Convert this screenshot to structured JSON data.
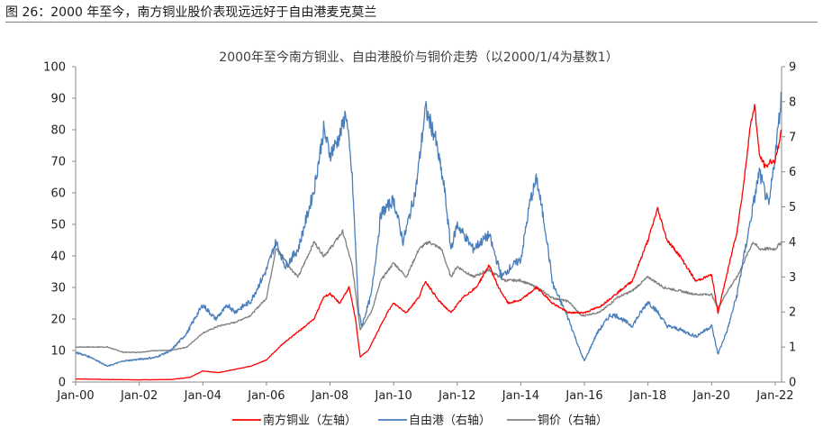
{
  "figure_caption": "图 26：2000 年至今，南方铜业股价表现远远好于自由港麦克莫兰",
  "chart_data": {
    "type": "line",
    "title": "2000年至今南方铜业、自由港股价与铜价走势（以2000/1/4为基数1）",
    "x_tick_labels": [
      "Jan-00",
      "Jan-02",
      "Jan-04",
      "Jan-06",
      "Jan-08",
      "Jan-10",
      "Jan-12",
      "Jan-14",
      "Jan-16",
      "Jan-18",
      "Jan-20",
      "Jan-22"
    ],
    "x_range": [
      2000.0,
      2022.2
    ],
    "y_left": {
      "ylim": [
        0,
        100
      ],
      "ticks": [
        0,
        10,
        20,
        30,
        40,
        50,
        60,
        70,
        80,
        90,
        100
      ]
    },
    "y_right": {
      "ylim": [
        0,
        9
      ],
      "ticks": [
        0,
        1,
        2,
        3,
        4,
        5,
        6,
        7,
        8,
        9
      ]
    },
    "series": [
      {
        "name": "南方铜业（左轴）",
        "axis": "left",
        "color": "#ff0000",
        "points": [
          [
            2000.0,
            1.0
          ],
          [
            2001.0,
            0.8
          ],
          [
            2002.0,
            0.7
          ],
          [
            2003.0,
            0.8
          ],
          [
            2003.6,
            1.5
          ],
          [
            2004.0,
            3.5
          ],
          [
            2004.5,
            3.0
          ],
          [
            2005.0,
            4.0
          ],
          [
            2005.5,
            5.0
          ],
          [
            2006.0,
            7.0
          ],
          [
            2006.5,
            12.0
          ],
          [
            2007.0,
            16.0
          ],
          [
            2007.5,
            20.0
          ],
          [
            2007.8,
            27.0
          ],
          [
            2008.0,
            28.0
          ],
          [
            2008.3,
            25.0
          ],
          [
            2008.6,
            30.0
          ],
          [
            2008.8,
            20.0
          ],
          [
            2008.95,
            8.0
          ],
          [
            2009.2,
            10.0
          ],
          [
            2009.5,
            16.0
          ],
          [
            2009.8,
            22.0
          ],
          [
            2010.0,
            25.0
          ],
          [
            2010.4,
            22.0
          ],
          [
            2010.8,
            27.0
          ],
          [
            2011.0,
            32.0
          ],
          [
            2011.4,
            26.0
          ],
          [
            2011.8,
            22.0
          ],
          [
            2012.2,
            27.0
          ],
          [
            2012.6,
            30.0
          ],
          [
            2013.0,
            37.0
          ],
          [
            2013.3,
            30.0
          ],
          [
            2013.6,
            25.0
          ],
          [
            2014.0,
            26.0
          ],
          [
            2014.5,
            30.0
          ],
          [
            2015.0,
            25.0
          ],
          [
            2015.5,
            22.0
          ],
          [
            2016.0,
            22.0
          ],
          [
            2016.5,
            24.0
          ],
          [
            2017.0,
            28.0
          ],
          [
            2017.5,
            32.0
          ],
          [
            2018.0,
            45.0
          ],
          [
            2018.3,
            55.0
          ],
          [
            2018.6,
            45.0
          ],
          [
            2019.0,
            40.0
          ],
          [
            2019.5,
            32.0
          ],
          [
            2020.0,
            34.0
          ],
          [
            2020.2,
            22.0
          ],
          [
            2020.5,
            35.0
          ],
          [
            2020.8,
            48.0
          ],
          [
            2021.0,
            62.0
          ],
          [
            2021.2,
            80.0
          ],
          [
            2021.35,
            88.0
          ],
          [
            2021.5,
            72.0
          ],
          [
            2021.7,
            68.0
          ],
          [
            2021.85,
            70.0
          ],
          [
            2022.0,
            70.0
          ],
          [
            2022.2,
            80.0
          ]
        ]
      },
      {
        "name": "自由港（右轴）",
        "axis": "right",
        "color": "#4a7ebb",
        "points": [
          [
            2000.0,
            0.85
          ],
          [
            2000.5,
            0.7
          ],
          [
            2001.0,
            0.45
          ],
          [
            2001.5,
            0.6
          ],
          [
            2002.0,
            0.65
          ],
          [
            2002.5,
            0.7
          ],
          [
            2003.0,
            0.9
          ],
          [
            2003.5,
            1.4
          ],
          [
            2003.8,
            1.9
          ],
          [
            2004.0,
            2.2
          ],
          [
            2004.4,
            1.8
          ],
          [
            2004.8,
            2.2
          ],
          [
            2005.0,
            2.0
          ],
          [
            2005.5,
            2.3
          ],
          [
            2006.0,
            3.2
          ],
          [
            2006.3,
            4.0
          ],
          [
            2006.6,
            3.3
          ],
          [
            2007.0,
            3.8
          ],
          [
            2007.5,
            5.5
          ],
          [
            2007.8,
            7.2
          ],
          [
            2008.0,
            6.5
          ],
          [
            2008.3,
            7.0
          ],
          [
            2008.5,
            7.7
          ],
          [
            2008.7,
            5.8
          ],
          [
            2008.9,
            2.0
          ],
          [
            2009.0,
            1.6
          ],
          [
            2009.3,
            2.5
          ],
          [
            2009.6,
            4.8
          ],
          [
            2010.0,
            5.2
          ],
          [
            2010.3,
            4.0
          ],
          [
            2010.7,
            5.5
          ],
          [
            2011.0,
            7.8
          ],
          [
            2011.3,
            7.0
          ],
          [
            2011.6,
            5.5
          ],
          [
            2011.8,
            3.8
          ],
          [
            2012.0,
            4.5
          ],
          [
            2012.5,
            3.8
          ],
          [
            2013.0,
            4.2
          ],
          [
            2013.4,
            3.0
          ],
          [
            2013.7,
            3.3
          ],
          [
            2014.0,
            3.5
          ],
          [
            2014.3,
            5.2
          ],
          [
            2014.5,
            5.8
          ],
          [
            2014.8,
            4.2
          ],
          [
            2015.0,
            2.8
          ],
          [
            2015.5,
            1.8
          ],
          [
            2015.9,
            0.8
          ],
          [
            2016.0,
            0.6
          ],
          [
            2016.4,
            1.4
          ],
          [
            2016.8,
            1.9
          ],
          [
            2017.0,
            1.9
          ],
          [
            2017.5,
            1.6
          ],
          [
            2018.0,
            2.3
          ],
          [
            2018.3,
            2.0
          ],
          [
            2018.6,
            1.6
          ],
          [
            2019.0,
            1.5
          ],
          [
            2019.5,
            1.3
          ],
          [
            2020.0,
            1.6
          ],
          [
            2020.2,
            0.8
          ],
          [
            2020.5,
            1.5
          ],
          [
            2020.8,
            2.5
          ],
          [
            2021.0,
            3.5
          ],
          [
            2021.3,
            5.0
          ],
          [
            2021.5,
            6.0
          ],
          [
            2021.8,
            5.0
          ],
          [
            2022.0,
            6.5
          ],
          [
            2022.2,
            8.2
          ]
        ]
      },
      {
        "name": "铜价（右轴）",
        "axis": "right",
        "color": "#808080",
        "points": [
          [
            2000.0,
            1.0
          ],
          [
            2000.5,
            1.0
          ],
          [
            2001.0,
            1.0
          ],
          [
            2001.5,
            0.85
          ],
          [
            2002.0,
            0.85
          ],
          [
            2002.5,
            0.9
          ],
          [
            2003.0,
            0.9
          ],
          [
            2003.5,
            1.0
          ],
          [
            2004.0,
            1.4
          ],
          [
            2004.5,
            1.6
          ],
          [
            2005.0,
            1.7
          ],
          [
            2005.5,
            1.9
          ],
          [
            2006.0,
            2.4
          ],
          [
            2006.3,
            3.8
          ],
          [
            2006.5,
            3.6
          ],
          [
            2006.8,
            3.2
          ],
          [
            2007.0,
            3.0
          ],
          [
            2007.5,
            4.0
          ],
          [
            2007.8,
            3.6
          ],
          [
            2008.0,
            3.8
          ],
          [
            2008.4,
            4.3
          ],
          [
            2008.7,
            3.3
          ],
          [
            2008.95,
            1.5
          ],
          [
            2009.3,
            2.0
          ],
          [
            2009.6,
            2.9
          ],
          [
            2010.0,
            3.4
          ],
          [
            2010.4,
            3.0
          ],
          [
            2010.8,
            3.8
          ],
          [
            2011.1,
            4.0
          ],
          [
            2011.5,
            3.8
          ],
          [
            2011.8,
            3.0
          ],
          [
            2012.0,
            3.3
          ],
          [
            2012.5,
            3.0
          ],
          [
            2013.0,
            3.2
          ],
          [
            2013.5,
            2.9
          ],
          [
            2014.0,
            2.9
          ],
          [
            2014.5,
            2.7
          ],
          [
            2015.0,
            2.4
          ],
          [
            2015.5,
            2.3
          ],
          [
            2015.9,
            1.9
          ],
          [
            2016.0,
            1.9
          ],
          [
            2016.5,
            2.0
          ],
          [
            2016.9,
            2.3
          ],
          [
            2017.0,
            2.4
          ],
          [
            2017.5,
            2.6
          ],
          [
            2018.0,
            3.0
          ],
          [
            2018.5,
            2.7
          ],
          [
            2019.0,
            2.6
          ],
          [
            2019.5,
            2.5
          ],
          [
            2020.0,
            2.5
          ],
          [
            2020.2,
            2.1
          ],
          [
            2020.5,
            2.6
          ],
          [
            2020.8,
            3.0
          ],
          [
            2021.0,
            3.4
          ],
          [
            2021.3,
            4.0
          ],
          [
            2021.5,
            3.8
          ],
          [
            2022.0,
            3.8
          ],
          [
            2022.2,
            4.0
          ]
        ]
      }
    ],
    "legend_position": "bottom"
  }
}
